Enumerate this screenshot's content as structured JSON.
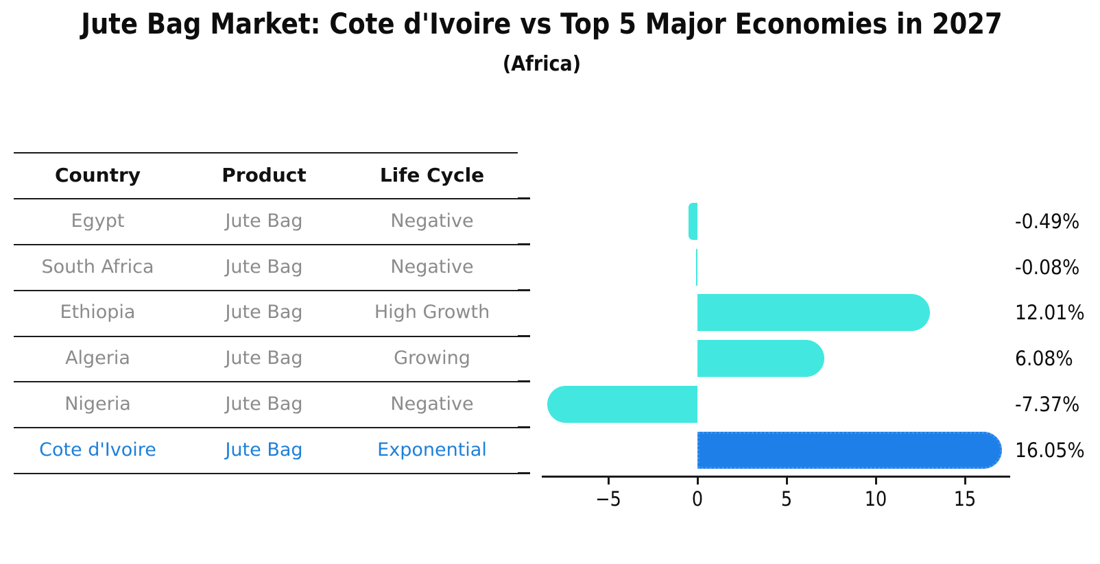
{
  "title": "Jute Bag Market: Cote d'Ivoire vs Top 5 Major Economies in 2027",
  "subtitle": "(Africa)",
  "table": {
    "headers": [
      "Country",
      "Product",
      "Life Cycle"
    ],
    "rows": [
      {
        "country": "Egypt",
        "product": "Jute Bag",
        "life_cycle": "Negative",
        "highlight": false
      },
      {
        "country": "South Africa",
        "product": "Jute Bag",
        "life_cycle": "Negative",
        "highlight": false
      },
      {
        "country": "Ethiopia",
        "product": "Jute Bag",
        "life_cycle": "High Growth",
        "highlight": false
      },
      {
        "country": "Algeria",
        "product": "Jute Bag",
        "life_cycle": "Growing",
        "highlight": false
      },
      {
        "country": "Nigeria",
        "product": "Jute Bag",
        "life_cycle": "Negative",
        "highlight": false
      },
      {
        "country": "Cote d'Ivoire",
        "product": "Jute Bag",
        "life_cycle": "Exponential",
        "highlight": true
      }
    ]
  },
  "chart_data": {
    "type": "bar",
    "orientation": "horizontal",
    "title": "Jute Bag Market: Cote d'Ivoire vs Top 5 Major Economies in 2027 (Africa)",
    "categories": [
      "Egypt",
      "South Africa",
      "Ethiopia",
      "Algeria",
      "Nigeria",
      "Cote d'Ivoire"
    ],
    "values": [
      -0.49,
      -0.08,
      12.01,
      6.08,
      -7.37,
      16.05
    ],
    "value_labels": [
      "-0.49%",
      "-0.08%",
      "12.01%",
      "6.08%",
      "-7.37%",
      "16.05%"
    ],
    "x_ticks": [
      -5,
      0,
      5,
      10,
      15
    ],
    "x_tick_labels": [
      "−5",
      "0",
      "5",
      "10",
      "15"
    ],
    "xlim": [
      -8.7,
      17.6
    ],
    "grid": false,
    "legend": false,
    "highlight_index": 5
  },
  "colors": {
    "bar": "#42E8DF",
    "highlight_bar": "#1F7FE8",
    "highlight_bar_border": "#3D95EE",
    "row_text": "#8B8B8B",
    "highlight_text": "#1E80D9",
    "header_text": "#111111",
    "value_text": "#0D0D0D",
    "axis": "#1A1A1A"
  }
}
